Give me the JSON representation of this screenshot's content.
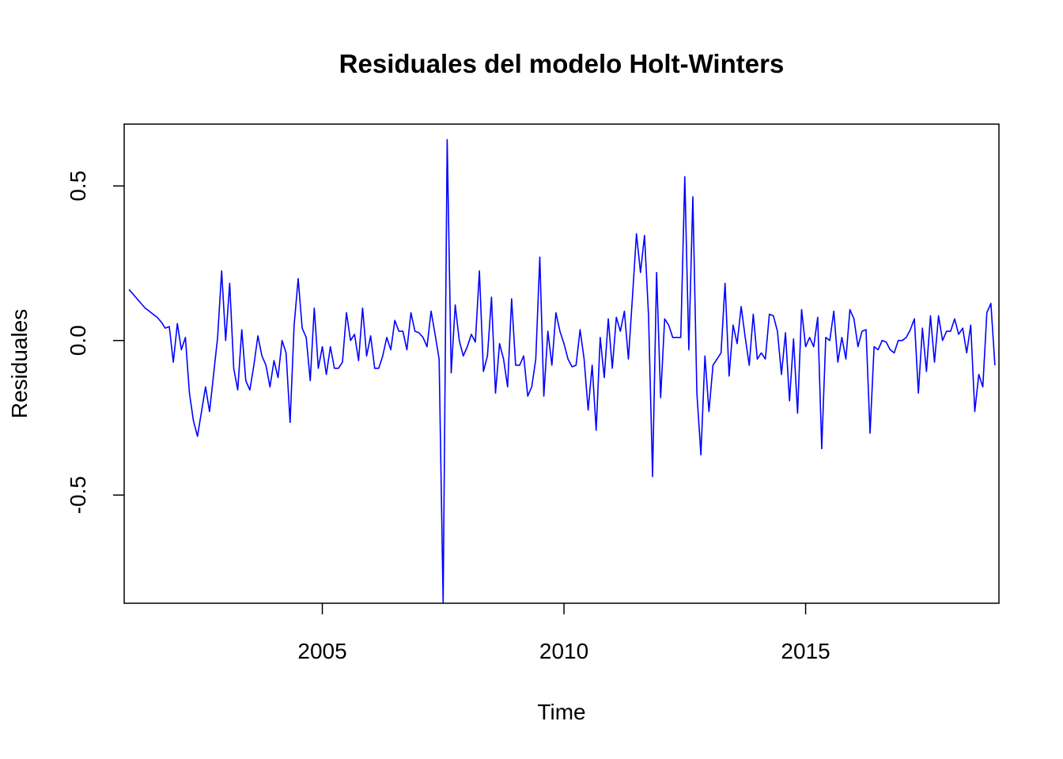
{
  "chart_data": {
    "type": "line",
    "title": "Residuales del modelo Holt-Winters",
    "xlabel": "Time",
    "ylabel": "Residuales",
    "xlim": [
      2000.9,
      2019.0
    ],
    "ylim": [
      -0.85,
      0.7
    ],
    "x_ticks": [
      2005,
      2010,
      2015
    ],
    "x_tick_labels": [
      "2005",
      "2010",
      "2015"
    ],
    "y_ticks": [
      -0.5,
      0.0,
      0.5
    ],
    "y_tick_labels": [
      "-0.5",
      "0.0",
      "0.5"
    ],
    "grid": false,
    "line_color": "#0000ff",
    "series": [
      {
        "start": 2001.0,
        "frequency": 12,
        "values": [
          0.165,
          0.15,
          0.135,
          0.12,
          0.105,
          0.095,
          0.085,
          0.075,
          0.06,
          0.04,
          0.045,
          -0.07,
          0.055,
          -0.03,
          0.01,
          -0.17,
          -0.26,
          -0.31,
          -0.23,
          -0.15,
          -0.23,
          -0.11,
          0.01,
          0.225,
          0.0,
          0.185,
          -0.09,
          -0.16,
          0.035,
          -0.13,
          -0.16,
          -0.08,
          0.015,
          -0.05,
          -0.08,
          -0.15,
          -0.065,
          -0.12,
          0.0,
          -0.04,
          -0.265,
          0.05,
          0.2,
          0.04,
          0.01,
          -0.13,
          0.105,
          -0.09,
          -0.02,
          -0.11,
          -0.02,
          -0.09,
          -0.09,
          -0.07,
          0.09,
          0.0,
          0.02,
          -0.065,
          0.105,
          -0.05,
          0.015,
          -0.09,
          -0.09,
          -0.05,
          0.01,
          -0.03,
          0.065,
          0.03,
          0.03,
          -0.03,
          0.09,
          0.03,
          0.025,
          0.01,
          -0.02,
          0.095,
          0.02,
          -0.06,
          -0.85,
          0.65,
          -0.105,
          0.115,
          0.0,
          -0.05,
          -0.02,
          0.02,
          -0.005,
          0.225,
          -0.1,
          -0.05,
          0.14,
          -0.17,
          -0.01,
          -0.06,
          -0.15,
          0.135,
          -0.08,
          -0.08,
          -0.05,
          -0.18,
          -0.15,
          -0.06,
          0.27,
          -0.18,
          0.03,
          -0.08,
          0.09,
          0.03,
          -0.01,
          -0.06,
          -0.085,
          -0.08,
          0.035,
          -0.06,
          -0.225,
          -0.08,
          -0.29,
          0.01,
          -0.12,
          0.07,
          -0.09,
          0.075,
          0.03,
          0.095,
          -0.06,
          0.14,
          0.345,
          0.22,
          0.34,
          0.08,
          -0.44,
          0.22,
          -0.185,
          0.07,
          0.05,
          0.01,
          0.01,
          0.01,
          0.53,
          -0.03,
          0.465,
          -0.17,
          -0.37,
          -0.05,
          -0.23,
          -0.08,
          -0.06,
          -0.04,
          0.185,
          -0.115,
          0.05,
          -0.01,
          0.11,
          0.01,
          -0.08,
          0.085,
          -0.06,
          -0.04,
          -0.06,
          0.085,
          0.08,
          0.03,
          -0.11,
          0.025,
          -0.195,
          0.005,
          -0.235,
          0.1,
          -0.02,
          0.01,
          -0.02,
          0.075,
          -0.35,
          0.01,
          0.0,
          0.095,
          -0.07,
          0.01,
          -0.06,
          0.1,
          0.07,
          -0.02,
          0.03,
          0.035,
          -0.3,
          -0.02,
          -0.03,
          0.0,
          -0.005,
          -0.03,
          -0.04,
          0.0,
          0.0,
          0.01,
          0.035,
          0.07,
          -0.17,
          0.04,
          -0.1,
          0.08,
          -0.07,
          0.08,
          0.0,
          0.03,
          0.03,
          0.07,
          0.02,
          0.04,
          -0.04,
          0.05,
          -0.23,
          -0.11,
          -0.15,
          0.09,
          0.12,
          -0.08
        ]
      }
    ]
  }
}
